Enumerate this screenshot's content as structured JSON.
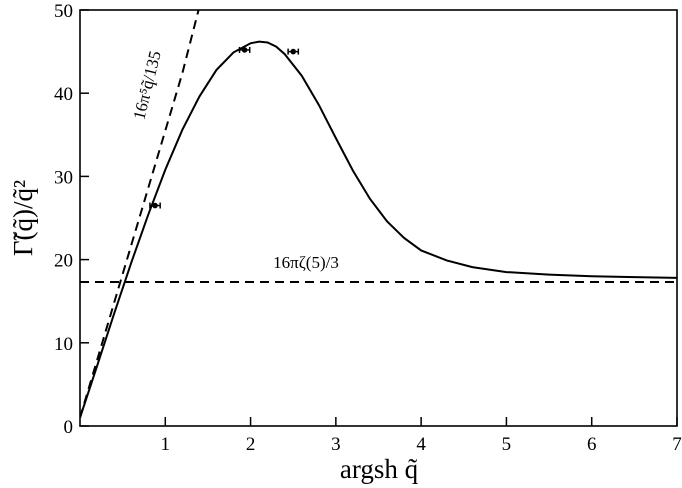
{
  "chart_data": {
    "type": "line",
    "title": "",
    "xlabel": "argsh q̃",
    "ylabel": "Γ̃(q̃)/q̃²",
    "xlim": [
      0,
      7
    ],
    "ylim": [
      0,
      50
    ],
    "x_ticks": [
      1,
      2,
      3,
      4,
      5,
      6,
      7
    ],
    "x_tick_labels": [
      "1",
      "2",
      "3",
      "4",
      "5",
      "6",
      "7"
    ],
    "y_ticks": [
      0,
      10,
      20,
      30,
      40,
      50
    ],
    "y_tick_labels": [
      "0",
      "10",
      "20",
      "30",
      "40",
      "50"
    ],
    "grid": false,
    "legend": "none",
    "series": [
      {
        "style": "solid",
        "x": [
          0.0,
          0.2,
          0.4,
          0.6,
          0.8,
          1.0,
          1.2,
          1.4,
          1.6,
          1.8,
          2.0,
          2.1,
          2.2,
          2.3,
          2.4,
          2.6,
          2.8,
          3.0,
          3.2,
          3.4,
          3.6,
          3.8,
          4.0,
          4.3,
          4.6,
          5.0,
          5.5,
          6.0,
          6.5,
          7.0
        ],
        "y": [
          1.0,
          7.2,
          13.5,
          19.6,
          25.4,
          30.8,
          35.6,
          39.6,
          42.8,
          44.9,
          46.0,
          46.2,
          46.1,
          45.6,
          44.7,
          42.1,
          38.6,
          34.6,
          30.7,
          27.3,
          24.6,
          22.6,
          21.1,
          19.9,
          19.1,
          18.5,
          18.2,
          18.0,
          17.9,
          17.8
        ]
      },
      {
        "style": "dashed",
        "x": [
          0.0,
          0.2,
          0.4,
          0.6,
          0.8,
          1.0,
          1.2,
          1.39
        ],
        "y": [
          1.0,
          7.9,
          14.8,
          21.7,
          28.6,
          35.5,
          42.4,
          50.0
        ]
      },
      {
        "style": "dashed",
        "x": [
          0.0,
          7.0
        ],
        "y": [
          17.3,
          17.3
        ]
      }
    ],
    "error_points": [
      {
        "x": 0.88,
        "y": 26.5,
        "xerr": 0.06
      },
      {
        "x": 1.93,
        "y": 45.2,
        "xerr": 0.06
      },
      {
        "x": 2.5,
        "y": 45.0,
        "xerr": 0.06
      }
    ],
    "annotations": [
      {
        "text": "16π⁵q̃/135",
        "x": 0.85,
        "y": 40.8,
        "rotation": -76
      },
      {
        "text": "16πζ(5)/3",
        "x": 2.65,
        "y": 19.0,
        "rotation": 0
      }
    ]
  }
}
